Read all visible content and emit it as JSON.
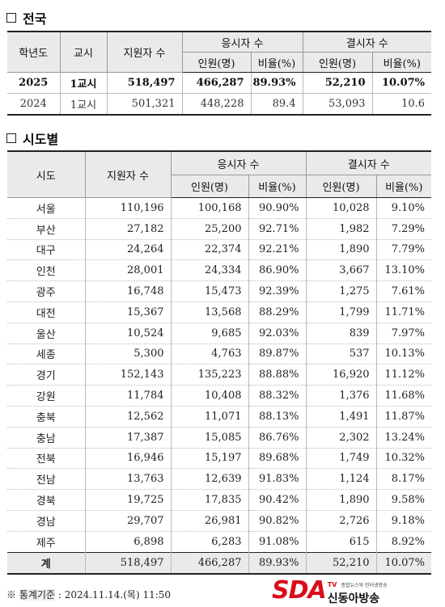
{
  "national": {
    "title": "전국",
    "headers": {
      "year": "학년도",
      "session": "교시",
      "applicants": "지원자 수",
      "takers": "응시자 수",
      "absentees": "결시자 수",
      "count": "인원(명)",
      "rate": "비율(%)"
    },
    "rows": [
      {
        "year": "2025",
        "session": "1교시",
        "applicants": "518,497",
        "takers": "466,287",
        "taker_rate": "89.93%",
        "absentees": "52,210",
        "absent_rate": "10.07%"
      },
      {
        "year": "2024",
        "session": "1교시",
        "applicants": "501,321",
        "takers": "448,228",
        "taker_rate": "89.4",
        "absentees": "53,093",
        "absent_rate": "10.6"
      }
    ]
  },
  "regional": {
    "title": "시도별",
    "headers": {
      "region": "시도",
      "applicants": "지원자 수",
      "takers": "응시자 수",
      "absentees": "결시자 수",
      "count": "인원(명)",
      "rate": "비율(%)"
    },
    "rows": [
      {
        "region": "서울",
        "applicants": "110,196",
        "takers": "100,168",
        "taker_rate": "90.90%",
        "absentees": "10,028",
        "absent_rate": "9.10%"
      },
      {
        "region": "부산",
        "applicants": "27,182",
        "takers": "25,200",
        "taker_rate": "92.71%",
        "absentees": "1,982",
        "absent_rate": "7.29%"
      },
      {
        "region": "대구",
        "applicants": "24,264",
        "takers": "22,374",
        "taker_rate": "92.21%",
        "absentees": "1,890",
        "absent_rate": "7.79%"
      },
      {
        "region": "인천",
        "applicants": "28,001",
        "takers": "24,334",
        "taker_rate": "86.90%",
        "absentees": "3,667",
        "absent_rate": "13.10%"
      },
      {
        "region": "광주",
        "applicants": "16,748",
        "takers": "15,473",
        "taker_rate": "92.39%",
        "absentees": "1,275",
        "absent_rate": "7.61%"
      },
      {
        "region": "대전",
        "applicants": "15,367",
        "takers": "13,568",
        "taker_rate": "88.29%",
        "absentees": "1,799",
        "absent_rate": "11.71%"
      },
      {
        "region": "울산",
        "applicants": "10,524",
        "takers": "9,685",
        "taker_rate": "92.03%",
        "absentees": "839",
        "absent_rate": "7.97%"
      },
      {
        "region": "세종",
        "applicants": "5,300",
        "takers": "4,763",
        "taker_rate": "89.87%",
        "absentees": "537",
        "absent_rate": "10.13%"
      },
      {
        "region": "경기",
        "applicants": "152,143",
        "takers": "135,223",
        "taker_rate": "88.88%",
        "absentees": "16,920",
        "absent_rate": "11.12%"
      },
      {
        "region": "강원",
        "applicants": "11,784",
        "takers": "10,408",
        "taker_rate": "88.32%",
        "absentees": "1,376",
        "absent_rate": "11.68%"
      },
      {
        "region": "충북",
        "applicants": "12,562",
        "takers": "11,071",
        "taker_rate": "88.13%",
        "absentees": "1,491",
        "absent_rate": "11.87%"
      },
      {
        "region": "충남",
        "applicants": "17,387",
        "takers": "15,085",
        "taker_rate": "86.76%",
        "absentees": "2,302",
        "absent_rate": "13.24%"
      },
      {
        "region": "전북",
        "applicants": "16,946",
        "takers": "15,197",
        "taker_rate": "89.68%",
        "absentees": "1,749",
        "absent_rate": "10.32%"
      },
      {
        "region": "전남",
        "applicants": "13,763",
        "takers": "12,639",
        "taker_rate": "91.83%",
        "absentees": "1,124",
        "absent_rate": "8.17%"
      },
      {
        "region": "경북",
        "applicants": "19,725",
        "takers": "17,835",
        "taker_rate": "90.42%",
        "absentees": "1,890",
        "absent_rate": "9.58%"
      },
      {
        "region": "경남",
        "applicants": "29,707",
        "takers": "26,981",
        "taker_rate": "90.82%",
        "absentees": "2,726",
        "absent_rate": "9.18%"
      },
      {
        "region": "제주",
        "applicants": "6,898",
        "takers": "6,283",
        "taker_rate": "91.08%",
        "absentees": "615",
        "absent_rate": "8.92%"
      }
    ],
    "total": {
      "region": "계",
      "applicants": "518,497",
      "takers": "466,287",
      "taker_rate": "89.93%",
      "absentees": "52,210",
      "absent_rate": "10.07%"
    }
  },
  "footnote": {
    "mark": "※",
    "label": "통계기준",
    "value": ": 2024.11.14.(목) 11:50"
  },
  "watermark": {
    "logo": "SDA",
    "tv": "TV",
    "tagline": "종합뉴스와 인터넷방송",
    "brand": "신동아방송"
  },
  "colors": {
    "brand_red": "#d90e1a",
    "header_bg": "#eaeaea"
  }
}
